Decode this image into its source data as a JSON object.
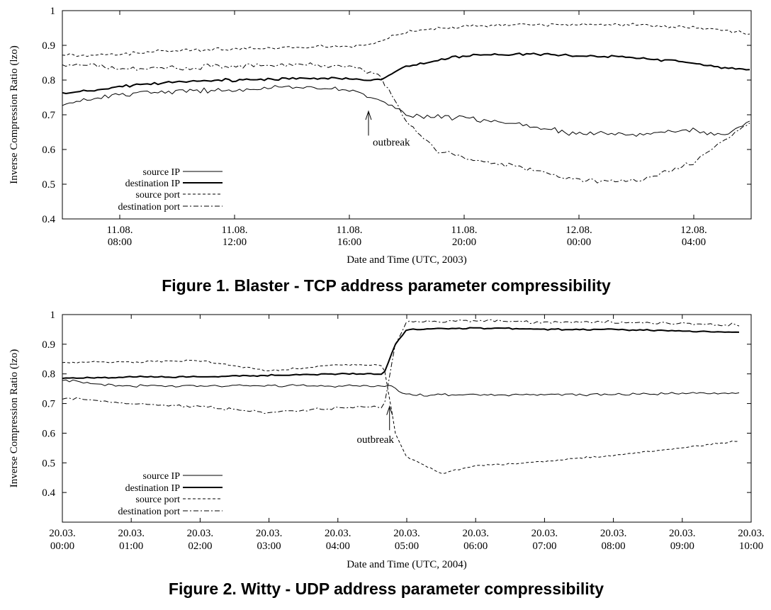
{
  "figures": [
    {
      "caption": "Figure 1. Blaster - TCP address parameter compressibility"
    },
    {
      "caption": "Figure 2. Witty - UDP address parameter compressibility"
    }
  ],
  "chart_data": [
    {
      "type": "line",
      "title": "",
      "xlabel": "Date and Time (UTC, 2003)",
      "ylabel": "Inverse Compression Ratio (lzo)",
      "xlim": [
        "2003-08-11 06:00",
        "2003-08-12 06:00"
      ],
      "ylim": [
        0.4,
        1.0
      ],
      "grid": false,
      "legend_position": "bottom-left",
      "x_tick_positions": [
        "2003-08-11 08:00",
        "2003-08-11 12:00",
        "2003-08-11 16:00",
        "2003-08-11 20:00",
        "2003-08-12 00:00",
        "2003-08-12 04:00"
      ],
      "x_ticks": [
        [
          "11.08.",
          "08:00"
        ],
        [
          "11.08.",
          "12:00"
        ],
        [
          "11.08.",
          "16:00"
        ],
        [
          "11.08.",
          "20:00"
        ],
        [
          "12.08.",
          "00:00"
        ],
        [
          "12.08.",
          "04:00"
        ]
      ],
      "y_ticks": [
        "0.4",
        "0.5",
        "0.6",
        "0.7",
        "0.8",
        "0.9",
        "1"
      ],
      "annotations": [
        {
          "text": "outbreak",
          "x": "2003-08-11 16:40",
          "y_arrow_tip": 0.71,
          "y_arrow_tail": 0.64
        }
      ],
      "series": [
        {
          "name": "source IP",
          "style": "thin-solid",
          "x": [
            "2003-08-11 06:00",
            "2003-08-11 08:00",
            "2003-08-11 10:00",
            "2003-08-11 12:00",
            "2003-08-11 14:00",
            "2003-08-11 16:00",
            "2003-08-11 17:00",
            "2003-08-11 18:00",
            "2003-08-11 20:00",
            "2003-08-11 22:00",
            "2003-08-12 00:00",
            "2003-08-12 02:00",
            "2003-08-12 04:00",
            "2003-08-12 05:00",
            "2003-08-12 06:00"
          ],
          "values": [
            0.73,
            0.76,
            0.77,
            0.77,
            0.78,
            0.77,
            0.75,
            0.7,
            0.69,
            0.67,
            0.645,
            0.645,
            0.655,
            0.64,
            0.68
          ]
        },
        {
          "name": "destination IP",
          "style": "thick-solid",
          "x": [
            "2003-08-11 06:00",
            "2003-08-11 08:00",
            "2003-08-11 10:00",
            "2003-08-11 12:00",
            "2003-08-11 14:00",
            "2003-08-11 16:00",
            "2003-08-11 17:00",
            "2003-08-11 18:00",
            "2003-08-11 20:00",
            "2003-08-11 22:00",
            "2003-08-12 00:00",
            "2003-08-12 02:00",
            "2003-08-12 04:00",
            "2003-08-12 05:00",
            "2003-08-12 06:00"
          ],
          "values": [
            0.76,
            0.78,
            0.795,
            0.8,
            0.805,
            0.805,
            0.8,
            0.84,
            0.87,
            0.875,
            0.87,
            0.865,
            0.85,
            0.835,
            0.83
          ]
        },
        {
          "name": "source port",
          "style": "dashed",
          "x": [
            "2003-08-11 06:00",
            "2003-08-11 08:00",
            "2003-08-11 10:00",
            "2003-08-11 12:00",
            "2003-08-11 14:00",
            "2003-08-11 16:00",
            "2003-08-11 17:00",
            "2003-08-11 18:00",
            "2003-08-11 20:00",
            "2003-08-11 22:00",
            "2003-08-12 00:00",
            "2003-08-12 02:00",
            "2003-08-12 04:00",
            "2003-08-12 05:00",
            "2003-08-12 06:00"
          ],
          "values": [
            0.87,
            0.875,
            0.885,
            0.89,
            0.895,
            0.895,
            0.91,
            0.94,
            0.955,
            0.96,
            0.96,
            0.96,
            0.95,
            0.945,
            0.93
          ]
        },
        {
          "name": "destination port",
          "style": "dash-dot",
          "x": [
            "2003-08-11 06:00",
            "2003-08-11 08:00",
            "2003-08-11 10:00",
            "2003-08-11 12:00",
            "2003-08-11 14:00",
            "2003-08-11 16:00",
            "2003-08-11 17:00",
            "2003-08-11 17:30",
            "2003-08-11 18:00",
            "2003-08-11 19:00",
            "2003-08-11 20:00",
            "2003-08-11 22:00",
            "2003-08-12 00:00",
            "2003-08-12 02:00",
            "2003-08-12 04:00",
            "2003-08-12 05:00",
            "2003-08-12 06:00"
          ],
          "values": [
            0.845,
            0.835,
            0.835,
            0.84,
            0.845,
            0.84,
            0.82,
            0.75,
            0.68,
            0.6,
            0.575,
            0.55,
            0.51,
            0.51,
            0.56,
            0.62,
            0.68
          ]
        }
      ]
    },
    {
      "type": "line",
      "title": "",
      "xlabel": "Date and Time (UTC, 2004)",
      "ylabel": "Inverse Compression Ratio (lzo)",
      "xlim": [
        "2004-03-20 00:00",
        "2004-03-20 10:00"
      ],
      "ylim": [
        0.3,
        1.0
      ],
      "grid": false,
      "legend_position": "bottom-left",
      "x_tick_positions": [
        "2004-03-20 00:00",
        "2004-03-20 01:00",
        "2004-03-20 02:00",
        "2004-03-20 03:00",
        "2004-03-20 04:00",
        "2004-03-20 05:00",
        "2004-03-20 06:00",
        "2004-03-20 07:00",
        "2004-03-20 08:00",
        "2004-03-20 09:00",
        "2004-03-20 10:00"
      ],
      "x_ticks": [
        [
          "20.03.",
          "00:00"
        ],
        [
          "20.03.",
          "01:00"
        ],
        [
          "20.03.",
          "02:00"
        ],
        [
          "20.03.",
          "03:00"
        ],
        [
          "20.03.",
          "04:00"
        ],
        [
          "20.03.",
          "05:00"
        ],
        [
          "20.03.",
          "06:00"
        ],
        [
          "20.03.",
          "07:00"
        ],
        [
          "20.03.",
          "08:00"
        ],
        [
          "20.03.",
          "09:00"
        ],
        [
          "20.03.",
          "10:00"
        ]
      ],
      "y_ticks": [
        "0.4",
        "0.5",
        "0.6",
        "0.7",
        "0.8",
        "0.9",
        "1"
      ],
      "annotations": [
        {
          "text": "outbreak",
          "x": "2004-03-20 04:45",
          "y_arrow_tip": 0.69,
          "y_arrow_tail": 0.61
        }
      ],
      "series": [
        {
          "name": "source IP",
          "style": "thin-solid",
          "x": [
            "2004-03-20 00:00",
            "2004-03-20 00:30",
            "2004-03-20 01:00",
            "2004-03-20 02:00",
            "2004-03-20 03:00",
            "2004-03-20 04:00",
            "2004-03-20 04:45",
            "2004-03-20 05:00",
            "2004-03-20 06:00",
            "2004-03-20 07:00",
            "2004-03-20 08:00",
            "2004-03-20 09:00",
            "2004-03-20 09:50"
          ],
          "values": [
            0.78,
            0.765,
            0.76,
            0.76,
            0.76,
            0.76,
            0.76,
            0.73,
            0.73,
            0.73,
            0.73,
            0.735,
            0.735
          ]
        },
        {
          "name": "destination IP",
          "style": "thick-solid",
          "x": [
            "2004-03-20 00:00",
            "2004-03-20 01:00",
            "2004-03-20 02:00",
            "2004-03-20 03:00",
            "2004-03-20 04:00",
            "2004-03-20 04:40",
            "2004-03-20 04:50",
            "2004-03-20 05:00",
            "2004-03-20 06:00",
            "2004-03-20 07:00",
            "2004-03-20 08:00",
            "2004-03-20 09:00",
            "2004-03-20 09:50"
          ],
          "values": [
            0.785,
            0.79,
            0.79,
            0.795,
            0.8,
            0.8,
            0.9,
            0.95,
            0.955,
            0.95,
            0.95,
            0.945,
            0.94
          ]
        },
        {
          "name": "source port",
          "style": "dashed",
          "x": [
            "2004-03-20 00:00",
            "2004-03-20 01:00",
            "2004-03-20 02:00",
            "2004-03-20 03:00",
            "2004-03-20 04:00",
            "2004-03-20 04:40",
            "2004-03-20 04:50",
            "2004-03-20 05:00",
            "2004-03-20 05:30",
            "2004-03-20 06:00",
            "2004-03-20 07:00",
            "2004-03-20 08:00",
            "2004-03-20 09:00",
            "2004-03-20 09:50"
          ],
          "values": [
            0.84,
            0.84,
            0.845,
            0.81,
            0.83,
            0.83,
            0.6,
            0.52,
            0.465,
            0.49,
            0.505,
            0.525,
            0.55,
            0.575
          ]
        },
        {
          "name": "destination port",
          "style": "dash-dot",
          "x": [
            "2004-03-20 00:00",
            "2004-03-20 01:00",
            "2004-03-20 02:00",
            "2004-03-20 03:00",
            "2004-03-20 04:00",
            "2004-03-20 04:40",
            "2004-03-20 04:50",
            "2004-03-20 05:00",
            "2004-03-20 06:00",
            "2004-03-20 07:00",
            "2004-03-20 08:00",
            "2004-03-20 09:00",
            "2004-03-20 09:50"
          ],
          "values": [
            0.72,
            0.7,
            0.69,
            0.67,
            0.685,
            0.69,
            0.9,
            0.975,
            0.98,
            0.975,
            0.975,
            0.97,
            0.965
          ]
        }
      ]
    }
  ]
}
